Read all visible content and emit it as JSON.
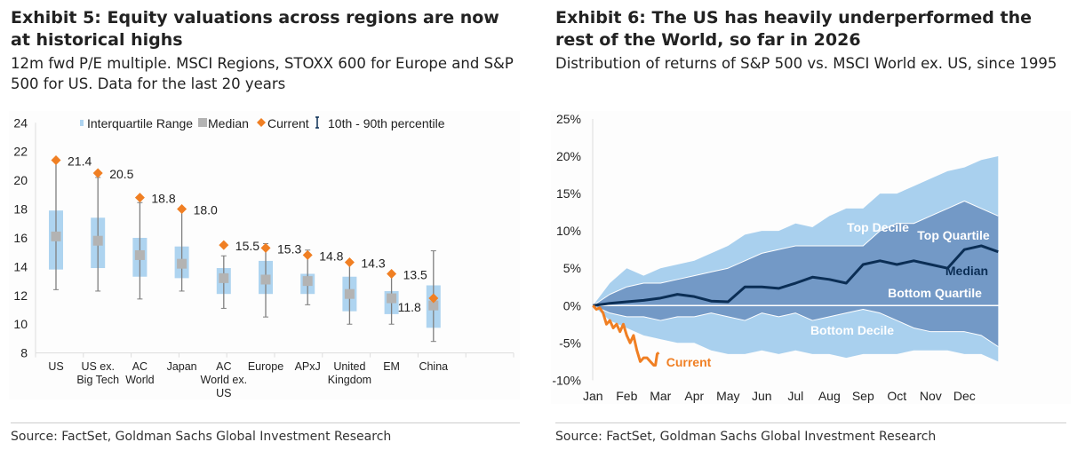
{
  "left": {
    "title": "Exhibit 5: Equity valuations across regions are now at historical highs",
    "subtitle": "12m fwd P/E multiple. MSCI Regions, STOXX 600 for Europe and S&P 500 for US. Data for the last 20 years",
    "source": "Source: FactSet, Goldman Sachs Global Investment Research"
  },
  "right": {
    "title": "Exhibit 6: The US has heavily underperformed the rest of the World, so far in 2026",
    "subtitle": "Distribution of returns of S&P 500 vs. MSCI World ex. US, since 1995",
    "source": "Source: FactSet, Goldman Sachs Global Investment Research"
  },
  "chart_data": [
    {
      "type": "box",
      "ylim": [
        8,
        24
      ],
      "yticks": [
        "8",
        "10",
        "12",
        "14",
        "16",
        "18",
        "20",
        "22",
        "24"
      ],
      "legend": [
        "Interquartile Range",
        "Median",
        "Current",
        "10th - 90th percentile"
      ],
      "legend_position": "top",
      "colors": {
        "iqr": "#aed4f0",
        "median": "#b3b3b3",
        "current": "#f07f23",
        "whisker": "#7f7f7f"
      },
      "categories": [
        [
          "US"
        ],
        [
          "US ex.",
          "Big Tech"
        ],
        [
          "AC",
          "World"
        ],
        [
          "Japan"
        ],
        [
          "AC",
          "World ex.",
          "US"
        ],
        [
          "Europe"
        ],
        [
          "APxJ"
        ],
        [
          "United",
          "Kingdom"
        ],
        [
          "EM"
        ],
        [
          "China"
        ]
      ],
      "p10": [
        12.4,
        12.3,
        11.75,
        12.3,
        11.1,
        10.5,
        11.35,
        10.0,
        10.0,
        8.8
      ],
      "q1": [
        13.8,
        13.9,
        13.3,
        13.2,
        12.1,
        12.1,
        12.1,
        10.9,
        10.7,
        9.75
      ],
      "median": [
        16.1,
        15.8,
        14.8,
        14.2,
        13.2,
        13.1,
        13.0,
        12.1,
        11.8,
        11.3
      ],
      "q3": [
        17.9,
        17.4,
        16.0,
        15.4,
        13.9,
        14.4,
        13.5,
        13.3,
        12.3,
        12.7
      ],
      "p90": [
        21.4,
        20.2,
        18.45,
        18.0,
        14.75,
        15.6,
        15.15,
        14.4,
        13.4,
        15.1
      ],
      "current": [
        21.4,
        20.5,
        18.8,
        18.0,
        15.5,
        15.3,
        14.8,
        14.3,
        13.5,
        11.8
      ],
      "current_labels": [
        "21.4",
        "20.5",
        "18.8",
        "18.0",
        "15.5",
        "15.3",
        "14.8",
        "14.3",
        "13.5",
        "11.8"
      ]
    },
    {
      "type": "area",
      "ylim": [
        -10,
        25
      ],
      "yticks": [
        "-10%",
        "-5%",
        "0%",
        "5%",
        "10%",
        "15%",
        "20%",
        "25%"
      ],
      "ytick_values": [
        -10,
        -5,
        0,
        5,
        10,
        15,
        20,
        25
      ],
      "xticks": [
        "Jan",
        "Feb",
        "Mar",
        "Apr",
        "May",
        "Jun",
        "Jul",
        "Aug",
        "Sep",
        "Oct",
        "Nov",
        "Dec"
      ],
      "x_month": [
        0,
        0.5,
        1,
        1.5,
        2,
        2.5,
        3,
        3.5,
        4,
        4.5,
        5,
        5.5,
        6,
        6.5,
        7,
        7.5,
        8,
        8.5,
        9,
        9.5,
        10,
        10.5,
        11,
        11.5,
        12
      ],
      "colors": {
        "decile": "#a9d0ee",
        "quartile": "#7399c6",
        "median": "#0b2e55",
        "current": "#f07f23"
      },
      "series": [
        {
          "name": "Top Decile",
          "values": [
            0,
            3,
            5,
            4,
            5,
            5.5,
            6,
            7,
            8,
            9.5,
            10,
            10,
            11,
            10.5,
            12,
            13,
            13,
            15,
            15,
            16,
            17,
            18,
            18.5,
            19.5,
            20
          ]
        },
        {
          "name": "Top Quartile",
          "values": [
            0,
            1.5,
            2.5,
            3,
            3,
            3.5,
            4,
            4.5,
            5,
            6,
            7,
            7.5,
            8,
            8,
            8,
            8,
            8,
            10,
            11,
            11,
            12,
            13,
            14,
            13,
            12
          ]
        },
        {
          "name": "Median",
          "values": [
            0,
            0.3,
            0.5,
            0.7,
            1,
            1.5,
            1.2,
            0.6,
            0.5,
            2.5,
            2.5,
            2.3,
            3,
            3.8,
            3.5,
            3,
            5.5,
            6,
            5.5,
            6,
            5.5,
            5,
            7.5,
            8,
            7.2
          ]
        },
        {
          "name": "Bottom Quartile",
          "values": [
            0,
            -1,
            -1.5,
            -1.5,
            -2,
            -1.5,
            -1.5,
            -1,
            -1.5,
            -2,
            -1,
            -1.5,
            -1,
            -2,
            -1.5,
            -1,
            -0.5,
            -1,
            -2,
            -3,
            -3.5,
            -3.5,
            -3.5,
            -4,
            -5.5
          ]
        },
        {
          "name": "Bottom Decile",
          "values": [
            0,
            -2,
            -3,
            -4,
            -4.5,
            -5,
            -5,
            -6,
            -6.5,
            -6.5,
            -6,
            -6.5,
            -6,
            -6.5,
            -6.5,
            -7,
            -6.5,
            -6.5,
            -6.5,
            -6,
            -6,
            -6,
            -6.5,
            -6.5,
            -7.5
          ]
        }
      ],
      "current": {
        "name": "Current",
        "x_month": [
          0,
          0.1,
          0.2,
          0.3,
          0.4,
          0.5,
          0.6,
          0.7,
          0.8,
          0.9,
          1.0,
          1.1,
          1.2,
          1.3,
          1.4,
          1.5,
          1.6,
          1.7,
          1.8,
          1.85,
          1.9,
          1.95
        ],
        "values": [
          0,
          -0.5,
          -0.3,
          -1,
          -2.5,
          -2,
          -3,
          -2.5,
          -3.5,
          -2.5,
          -4,
          -5,
          -4,
          -6,
          -7.5,
          -7,
          -7,
          -7.5,
          -8,
          -8,
          -6.5,
          -6.3
        ]
      }
    }
  ]
}
